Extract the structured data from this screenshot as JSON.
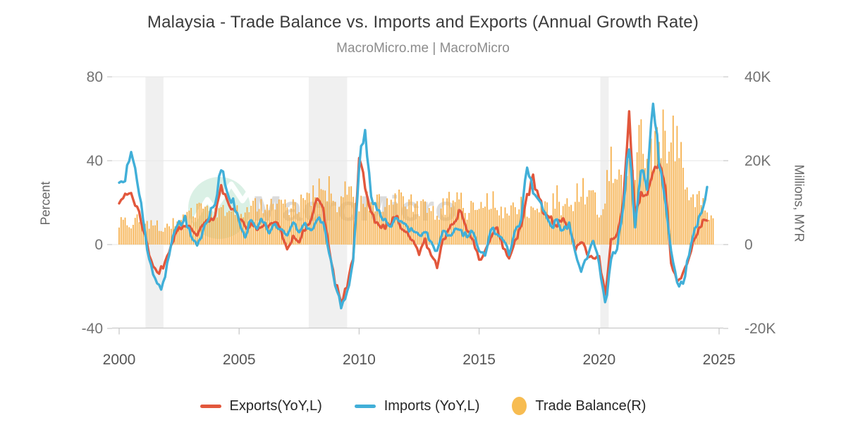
{
  "header": {
    "title": "Malaysia - Trade Balance vs. Imports and Exports (Annual Growth Rate)",
    "subtitle": "MacroMicro.me | MacroMicro"
  },
  "watermark": {
    "text": "MacroMicro",
    "circle_color": "#d6eee2",
    "text_color": "#d7d7d7"
  },
  "colors": {
    "exports": "#e2573c",
    "imports": "#41afd8",
    "trade_balance": "#f5ad44",
    "legend_dot": "#f7bc51",
    "recession_band": "#f0f0f0",
    "gridline": "#e9e9e9",
    "axis_line": "#c9c9c9",
    "tick_text": "#737373",
    "x_tick_text": "#555555"
  },
  "chart_data": {
    "type": "mixed-line-bar",
    "title": "Malaysia - Trade Balance vs. Imports and Exports (Annual Growth Rate)",
    "left_axis": {
      "label": "Percent",
      "min": -40,
      "max": 80,
      "ticks": [
        {
          "label": "80",
          "value": 80
        },
        {
          "label": "40",
          "value": 40
        },
        {
          "label": "0",
          "value": 0
        },
        {
          "label": "-40",
          "value": -40
        }
      ]
    },
    "right_axis": {
      "label": "Millions, MYR",
      "unit": "thousand millions MYR",
      "min": -20,
      "max": 40,
      "ticks": [
        {
          "label": "40K",
          "value": 40
        },
        {
          "label": "20K",
          "value": 20
        },
        {
          "label": "0",
          "value": 0
        },
        {
          "label": "-20K",
          "value": -20
        }
      ]
    },
    "x_axis": {
      "min": 2000,
      "max": 2025.15,
      "ticks": [
        2000,
        2005,
        2010,
        2015,
        2020,
        2025
      ]
    },
    "recession_bands": [
      [
        2001.1,
        2001.85
      ],
      [
        2007.9,
        2009.5
      ],
      [
        2020.05,
        2020.4
      ]
    ],
    "sampling": {
      "start_year": 2000,
      "interval_years": 0.25,
      "note": "values estimated from chart, quarterly; rendered monthly by interpolation"
    },
    "series": [
      {
        "name": "Exports(YoY,L)",
        "type": "line",
        "axis": "left",
        "unit": "%",
        "values": [
          18,
          24,
          27,
          17,
          8,
          -4,
          -13,
          -12,
          -6,
          2,
          8,
          10,
          8,
          4,
          9,
          12,
          14,
          26,
          20,
          16,
          12,
          8,
          10,
          6,
          10,
          8,
          12,
          6,
          -2,
          4,
          2,
          8,
          12,
          22,
          18,
          -2,
          -18,
          -28,
          -20,
          -6,
          42,
          28,
          14,
          10,
          8,
          10,
          14,
          8,
          6,
          2,
          -4,
          2,
          -6,
          -10,
          2,
          8,
          12,
          16,
          6,
          2,
          -8,
          -4,
          4,
          8,
          -2,
          -6,
          2,
          8,
          22,
          32,
          22,
          14,
          12,
          8,
          14,
          8,
          -2,
          2,
          -4,
          -6,
          -6,
          -24,
          2,
          4,
          18,
          63,
          14,
          26,
          22,
          35,
          41,
          28,
          -8,
          -17,
          -15,
          -6,
          4,
          10,
          12
        ]
      },
      {
        "name": "Imports (YoY,L)",
        "type": "line",
        "axis": "left",
        "unit": "%",
        "values": [
          28,
          32,
          42,
          30,
          12,
          -8,
          -18,
          -23,
          -10,
          4,
          10,
          12,
          4,
          0,
          6,
          14,
          20,
          38,
          24,
          20,
          10,
          4,
          12,
          8,
          12,
          6,
          10,
          8,
          4,
          10,
          6,
          10,
          6,
          12,
          10,
          -4,
          -20,
          -28,
          -24,
          -8,
          38,
          56,
          24,
          16,
          12,
          8,
          12,
          10,
          8,
          6,
          4,
          6,
          2,
          -4,
          6,
          4,
          8,
          6,
          4,
          6,
          -2,
          -6,
          8,
          4,
          2,
          -4,
          6,
          10,
          39,
          24,
          20,
          16,
          8,
          12,
          6,
          10,
          -4,
          -12,
          -6,
          2,
          -8,
          -30,
          -6,
          -2,
          18,
          48,
          8,
          36,
          28,
          67,
          40,
          22,
          -4,
          -18,
          -20,
          -4,
          8,
          14,
          26
        ]
      },
      {
        "name": "Trade Balance(R)",
        "type": "bar",
        "axis": "right",
        "unit": "K (thousand millions MYR)",
        "values": [
          5,
          6,
          5,
          6,
          4,
          5,
          5,
          4,
          4,
          5,
          6,
          6,
          7,
          8,
          8,
          9,
          7,
          8,
          8,
          9,
          8,
          9,
          9,
          10,
          8,
          9,
          10,
          9,
          9,
          10,
          9,
          11,
          11,
          13,
          15,
          13,
          9,
          12,
          13,
          11,
          10,
          11,
          9,
          11,
          9,
          11,
          10,
          11,
          9,
          10,
          8,
          9,
          8,
          6,
          9,
          10,
          9,
          12,
          8,
          9,
          8,
          10,
          11,
          10,
          7,
          8,
          9,
          10,
          8,
          9,
          10,
          9,
          9,
          12,
          8,
          10,
          11,
          14,
          10,
          12,
          7,
          13,
          20,
          17,
          14,
          20,
          17,
          26,
          19,
          24,
          28,
          26,
          24,
          28,
          18,
          14,
          12,
          10,
          8,
          6
        ]
      }
    ]
  },
  "legend": {
    "items": [
      {
        "label": "Exports(YoY,L)",
        "marker": "line",
        "color": "#e2573c"
      },
      {
        "label": "Imports (YoY,L)",
        "marker": "line",
        "color": "#41afd8"
      },
      {
        "label": "Trade Balance(R)",
        "marker": "circle",
        "color": "#f7bc51"
      }
    ]
  }
}
